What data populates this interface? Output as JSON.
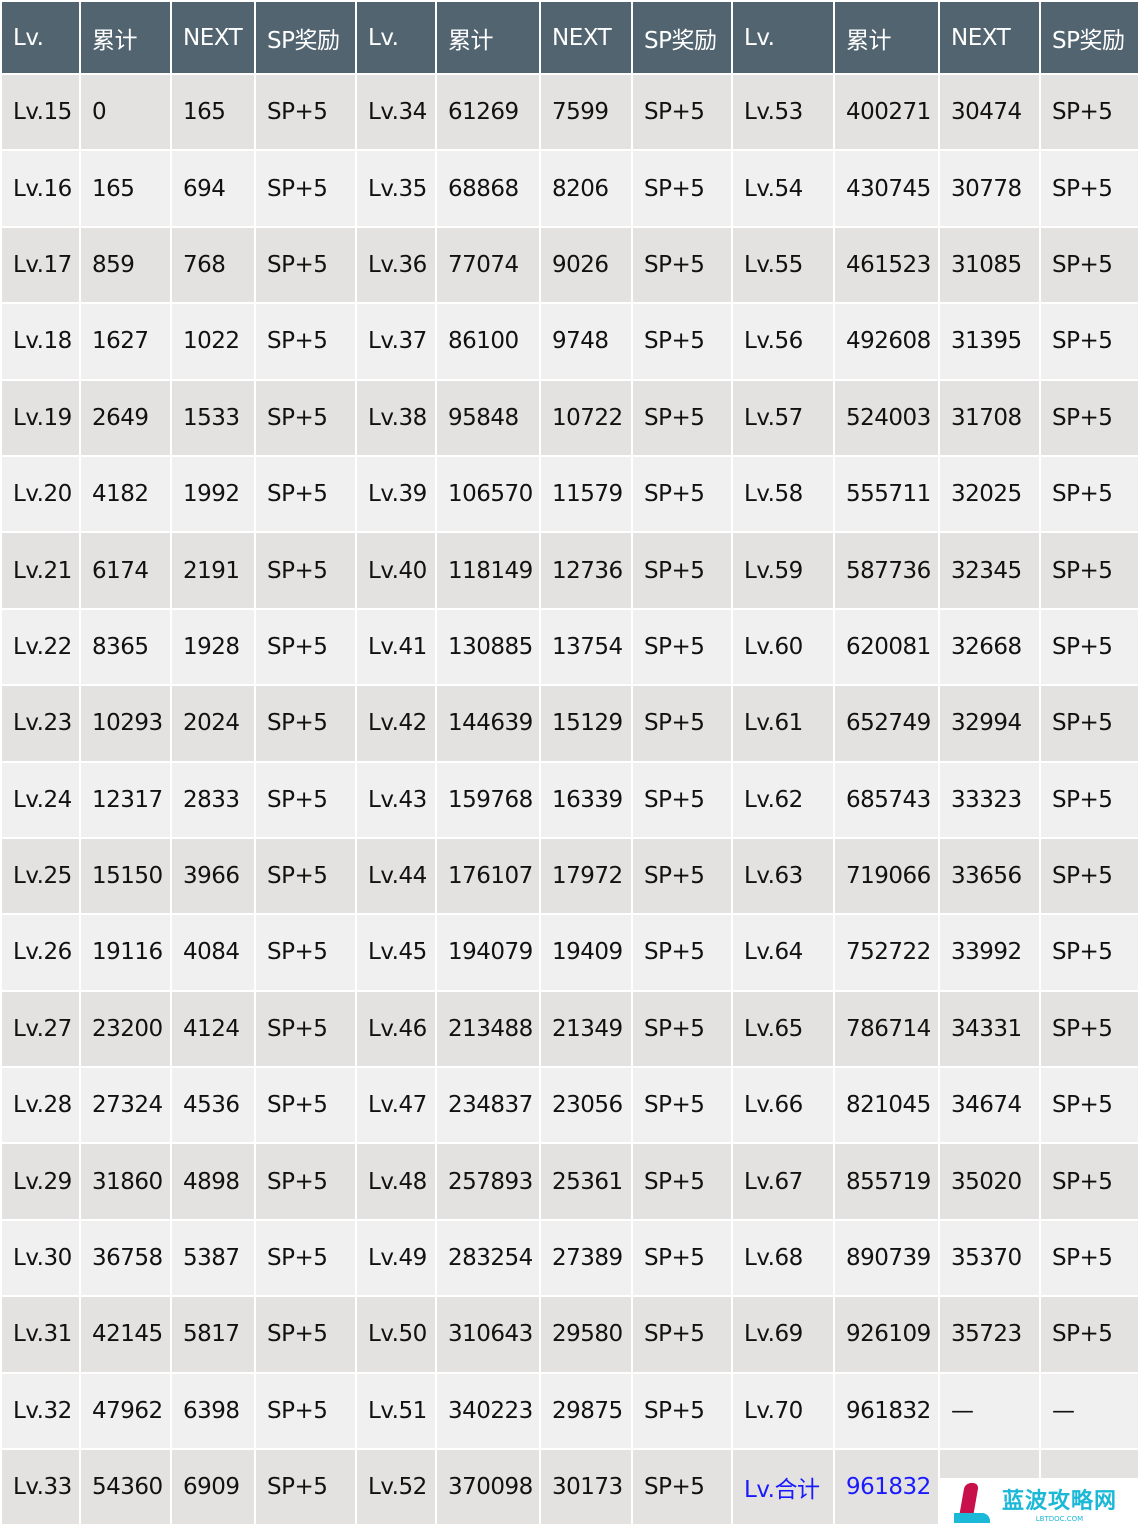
{
  "colors": {
    "header_bg": "#51646f",
    "row_odd": "#e3e2e0",
    "row_even": "#f0f0f0",
    "highlight": "#1a1aff"
  },
  "headers": [
    "Lv.",
    "累计",
    "NEXT",
    "SP奖励",
    "Lv.",
    "累计",
    "NEXT",
    "SP奖励",
    "Lv.",
    "累计",
    "NEXT",
    "SP奖励"
  ],
  "rows": [
    [
      "Lv.15",
      "0",
      "165",
      "SP+5",
      "Lv.34",
      "61269",
      "7599",
      "SP+5",
      "Lv.53",
      "400271",
      "30474",
      "SP+5"
    ],
    [
      "Lv.16",
      "165",
      "694",
      "SP+5",
      "Lv.35",
      "68868",
      "8206",
      "SP+5",
      "Lv.54",
      "430745",
      "30778",
      "SP+5"
    ],
    [
      "Lv.17",
      "859",
      "768",
      "SP+5",
      "Lv.36",
      "77074",
      "9026",
      "SP+5",
      "Lv.55",
      "461523",
      "31085",
      "SP+5"
    ],
    [
      "Lv.18",
      "1627",
      "1022",
      "SP+5",
      "Lv.37",
      "86100",
      "9748",
      "SP+5",
      "Lv.56",
      "492608",
      "31395",
      "SP+5"
    ],
    [
      "Lv.19",
      "2649",
      "1533",
      "SP+5",
      "Lv.38",
      "95848",
      "10722",
      "SP+5",
      "Lv.57",
      "524003",
      "31708",
      "SP+5"
    ],
    [
      "Lv.20",
      "4182",
      "1992",
      "SP+5",
      "Lv.39",
      "106570",
      "11579",
      "SP+5",
      "Lv.58",
      "555711",
      "32025",
      "SP+5"
    ],
    [
      "Lv.21",
      "6174",
      "2191",
      "SP+5",
      "Lv.40",
      "118149",
      "12736",
      "SP+5",
      "Lv.59",
      "587736",
      "32345",
      "SP+5"
    ],
    [
      "Lv.22",
      "8365",
      "1928",
      "SP+5",
      "Lv.41",
      "130885",
      "13754",
      "SP+5",
      "Lv.60",
      "620081",
      "32668",
      "SP+5"
    ],
    [
      "Lv.23",
      "10293",
      "2024",
      "SP+5",
      "Lv.42",
      "144639",
      "15129",
      "SP+5",
      "Lv.61",
      "652749",
      "32994",
      "SP+5"
    ],
    [
      "Lv.24",
      "12317",
      "2833",
      "SP+5",
      "Lv.43",
      "159768",
      "16339",
      "SP+5",
      "Lv.62",
      "685743",
      "33323",
      "SP+5"
    ],
    [
      "Lv.25",
      "15150",
      "3966",
      "SP+5",
      "Lv.44",
      "176107",
      "17972",
      "SP+5",
      "Lv.63",
      "719066",
      "33656",
      "SP+5"
    ],
    [
      "Lv.26",
      "19116",
      "4084",
      "SP+5",
      "Lv.45",
      "194079",
      "19409",
      "SP+5",
      "Lv.64",
      "752722",
      "33992",
      "SP+5"
    ],
    [
      "Lv.27",
      "23200",
      "4124",
      "SP+5",
      "Lv.46",
      "213488",
      "21349",
      "SP+5",
      "Lv.65",
      "786714",
      "34331",
      "SP+5"
    ],
    [
      "Lv.28",
      "27324",
      "4536",
      "SP+5",
      "Lv.47",
      "234837",
      "23056",
      "SP+5",
      "Lv.66",
      "821045",
      "34674",
      "SP+5"
    ],
    [
      "Lv.29",
      "31860",
      "4898",
      "SP+5",
      "Lv.48",
      "257893",
      "25361",
      "SP+5",
      "Lv.67",
      "855719",
      "35020",
      "SP+5"
    ],
    [
      "Lv.30",
      "36758",
      "5387",
      "SP+5",
      "Lv.49",
      "283254",
      "27389",
      "SP+5",
      "Lv.68",
      "890739",
      "35370",
      "SP+5"
    ],
    [
      "Lv.31",
      "42145",
      "5817",
      "SP+5",
      "Lv.50",
      "310643",
      "29580",
      "SP+5",
      "Lv.69",
      "926109",
      "35723",
      "SP+5"
    ],
    [
      "Lv.32",
      "47962",
      "6398",
      "SP+5",
      "Lv.51",
      "340223",
      "29875",
      "SP+5",
      "Lv.70",
      "961832",
      "—",
      "—"
    ],
    [
      "Lv.33",
      "54360",
      "6909",
      "SP+5",
      "Lv.52",
      "370098",
      "30173",
      "SP+5",
      "Lv.合计",
      "961832",
      "",
      ""
    ]
  ],
  "watermark": {
    "name": "蓝波攻略网",
    "domain": "LBTDOC.COM"
  }
}
